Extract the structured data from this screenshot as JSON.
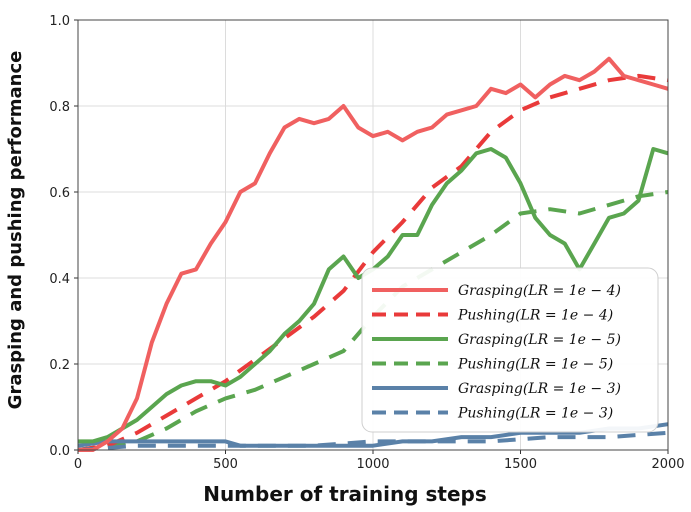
{
  "chart_data": {
    "type": "line",
    "title": "",
    "xlabel": "Number of training steps",
    "ylabel": "Grasping and pushing performance",
    "xlim": [
      0,
      2000
    ],
    "ylim": [
      0,
      1.0
    ],
    "xticks": [
      "0",
      "500",
      "1000",
      "1500",
      "2000"
    ],
    "yticks": [
      "0.0",
      "0.2",
      "0.4",
      "0.6",
      "0.8",
      "1.0"
    ],
    "grid": true,
    "legend_position": "lower-right",
    "series": [
      {
        "name": "Grasping(LR = 1e − 4)",
        "color": "#f06060",
        "dash": "solid",
        "x": [
          0,
          50,
          100,
          150,
          200,
          250,
          300,
          350,
          400,
          450,
          500,
          550,
          600,
          650,
          700,
          750,
          800,
          850,
          900,
          950,
          1000,
          1050,
          1100,
          1150,
          1200,
          1250,
          1300,
          1350,
          1400,
          1450,
          1500,
          1550,
          1600,
          1650,
          1700,
          1750,
          1800,
          1850,
          1900,
          1950,
          2000
        ],
        "y": [
          0.0,
          0.0,
          0.02,
          0.05,
          0.12,
          0.25,
          0.34,
          0.41,
          0.42,
          0.48,
          0.53,
          0.6,
          0.62,
          0.69,
          0.75,
          0.77,
          0.76,
          0.77,
          0.8,
          0.75,
          0.73,
          0.74,
          0.72,
          0.74,
          0.75,
          0.78,
          0.79,
          0.8,
          0.84,
          0.83,
          0.85,
          0.82,
          0.85,
          0.87,
          0.86,
          0.88,
          0.91,
          0.87,
          0.86,
          0.85,
          0.84
        ]
      },
      {
        "name": "Pushing(LR = 1e − 4)",
        "color": "#e93a3a",
        "dash": "dashed",
        "x": [
          0,
          100,
          200,
          300,
          400,
          500,
          600,
          700,
          800,
          900,
          1000,
          1100,
          1200,
          1300,
          1400,
          1500,
          1600,
          1700,
          1800,
          1900,
          2000
        ],
        "y": [
          0.0,
          0.01,
          0.04,
          0.08,
          0.12,
          0.16,
          0.21,
          0.26,
          0.31,
          0.37,
          0.46,
          0.53,
          0.61,
          0.66,
          0.74,
          0.79,
          0.82,
          0.84,
          0.86,
          0.87,
          0.86
        ]
      },
      {
        "name": "Grasping(LR = 1e − 5)",
        "color": "#5aa54f",
        "dash": "solid",
        "x": [
          0,
          50,
          100,
          150,
          200,
          250,
          300,
          350,
          400,
          450,
          500,
          550,
          600,
          650,
          700,
          750,
          800,
          850,
          900,
          950,
          1000,
          1050,
          1100,
          1150,
          1200,
          1250,
          1300,
          1350,
          1400,
          1450,
          1500,
          1550,
          1600,
          1650,
          1700,
          1750,
          1800,
          1850,
          1900,
          1950,
          2000
        ],
        "y": [
          0.02,
          0.02,
          0.03,
          0.05,
          0.07,
          0.1,
          0.13,
          0.15,
          0.16,
          0.16,
          0.15,
          0.17,
          0.2,
          0.23,
          0.27,
          0.3,
          0.34,
          0.42,
          0.45,
          0.4,
          0.42,
          0.45,
          0.5,
          0.5,
          0.57,
          0.62,
          0.65,
          0.69,
          0.7,
          0.68,
          0.62,
          0.54,
          0.5,
          0.48,
          0.42,
          0.48,
          0.54,
          0.55,
          0.58,
          0.7,
          0.69
        ]
      },
      {
        "name": "Pushing(LR = 1e − 5)",
        "color": "#5aa54f",
        "dash": "dashed",
        "x": [
          0,
          100,
          200,
          300,
          400,
          500,
          600,
          700,
          800,
          900,
          1000,
          1100,
          1200,
          1300,
          1400,
          1500,
          1600,
          1700,
          1800,
          1900,
          2000
        ],
        "y": [
          0.0,
          0.01,
          0.02,
          0.05,
          0.09,
          0.12,
          0.14,
          0.17,
          0.2,
          0.23,
          0.31,
          0.38,
          0.42,
          0.46,
          0.5,
          0.55,
          0.56,
          0.55,
          0.57,
          0.59,
          0.6
        ]
      },
      {
        "name": "Grasping(LR = 1e − 3)",
        "color": "#5a81a8",
        "dash": "solid",
        "x": [
          0,
          100,
          200,
          300,
          400,
          500,
          550,
          600,
          700,
          800,
          900,
          1000,
          1100,
          1200,
          1300,
          1400,
          1500,
          1600,
          1700,
          1800,
          1900,
          2000
        ],
        "y": [
          0.01,
          0.02,
          0.02,
          0.02,
          0.02,
          0.02,
          0.01,
          0.01,
          0.01,
          0.01,
          0.01,
          0.01,
          0.02,
          0.02,
          0.03,
          0.03,
          0.04,
          0.04,
          0.04,
          0.05,
          0.05,
          0.06
        ]
      },
      {
        "name": "Pushing(LR = 1e − 3)",
        "color": "#5a81a8",
        "dash": "dashed",
        "x": [
          0,
          200,
          400,
          600,
          800,
          1000,
          1200,
          1400,
          1600,
          1800,
          2000
        ],
        "y": [
          0.0,
          0.01,
          0.01,
          0.01,
          0.01,
          0.02,
          0.02,
          0.02,
          0.03,
          0.03,
          0.04
        ]
      }
    ]
  }
}
